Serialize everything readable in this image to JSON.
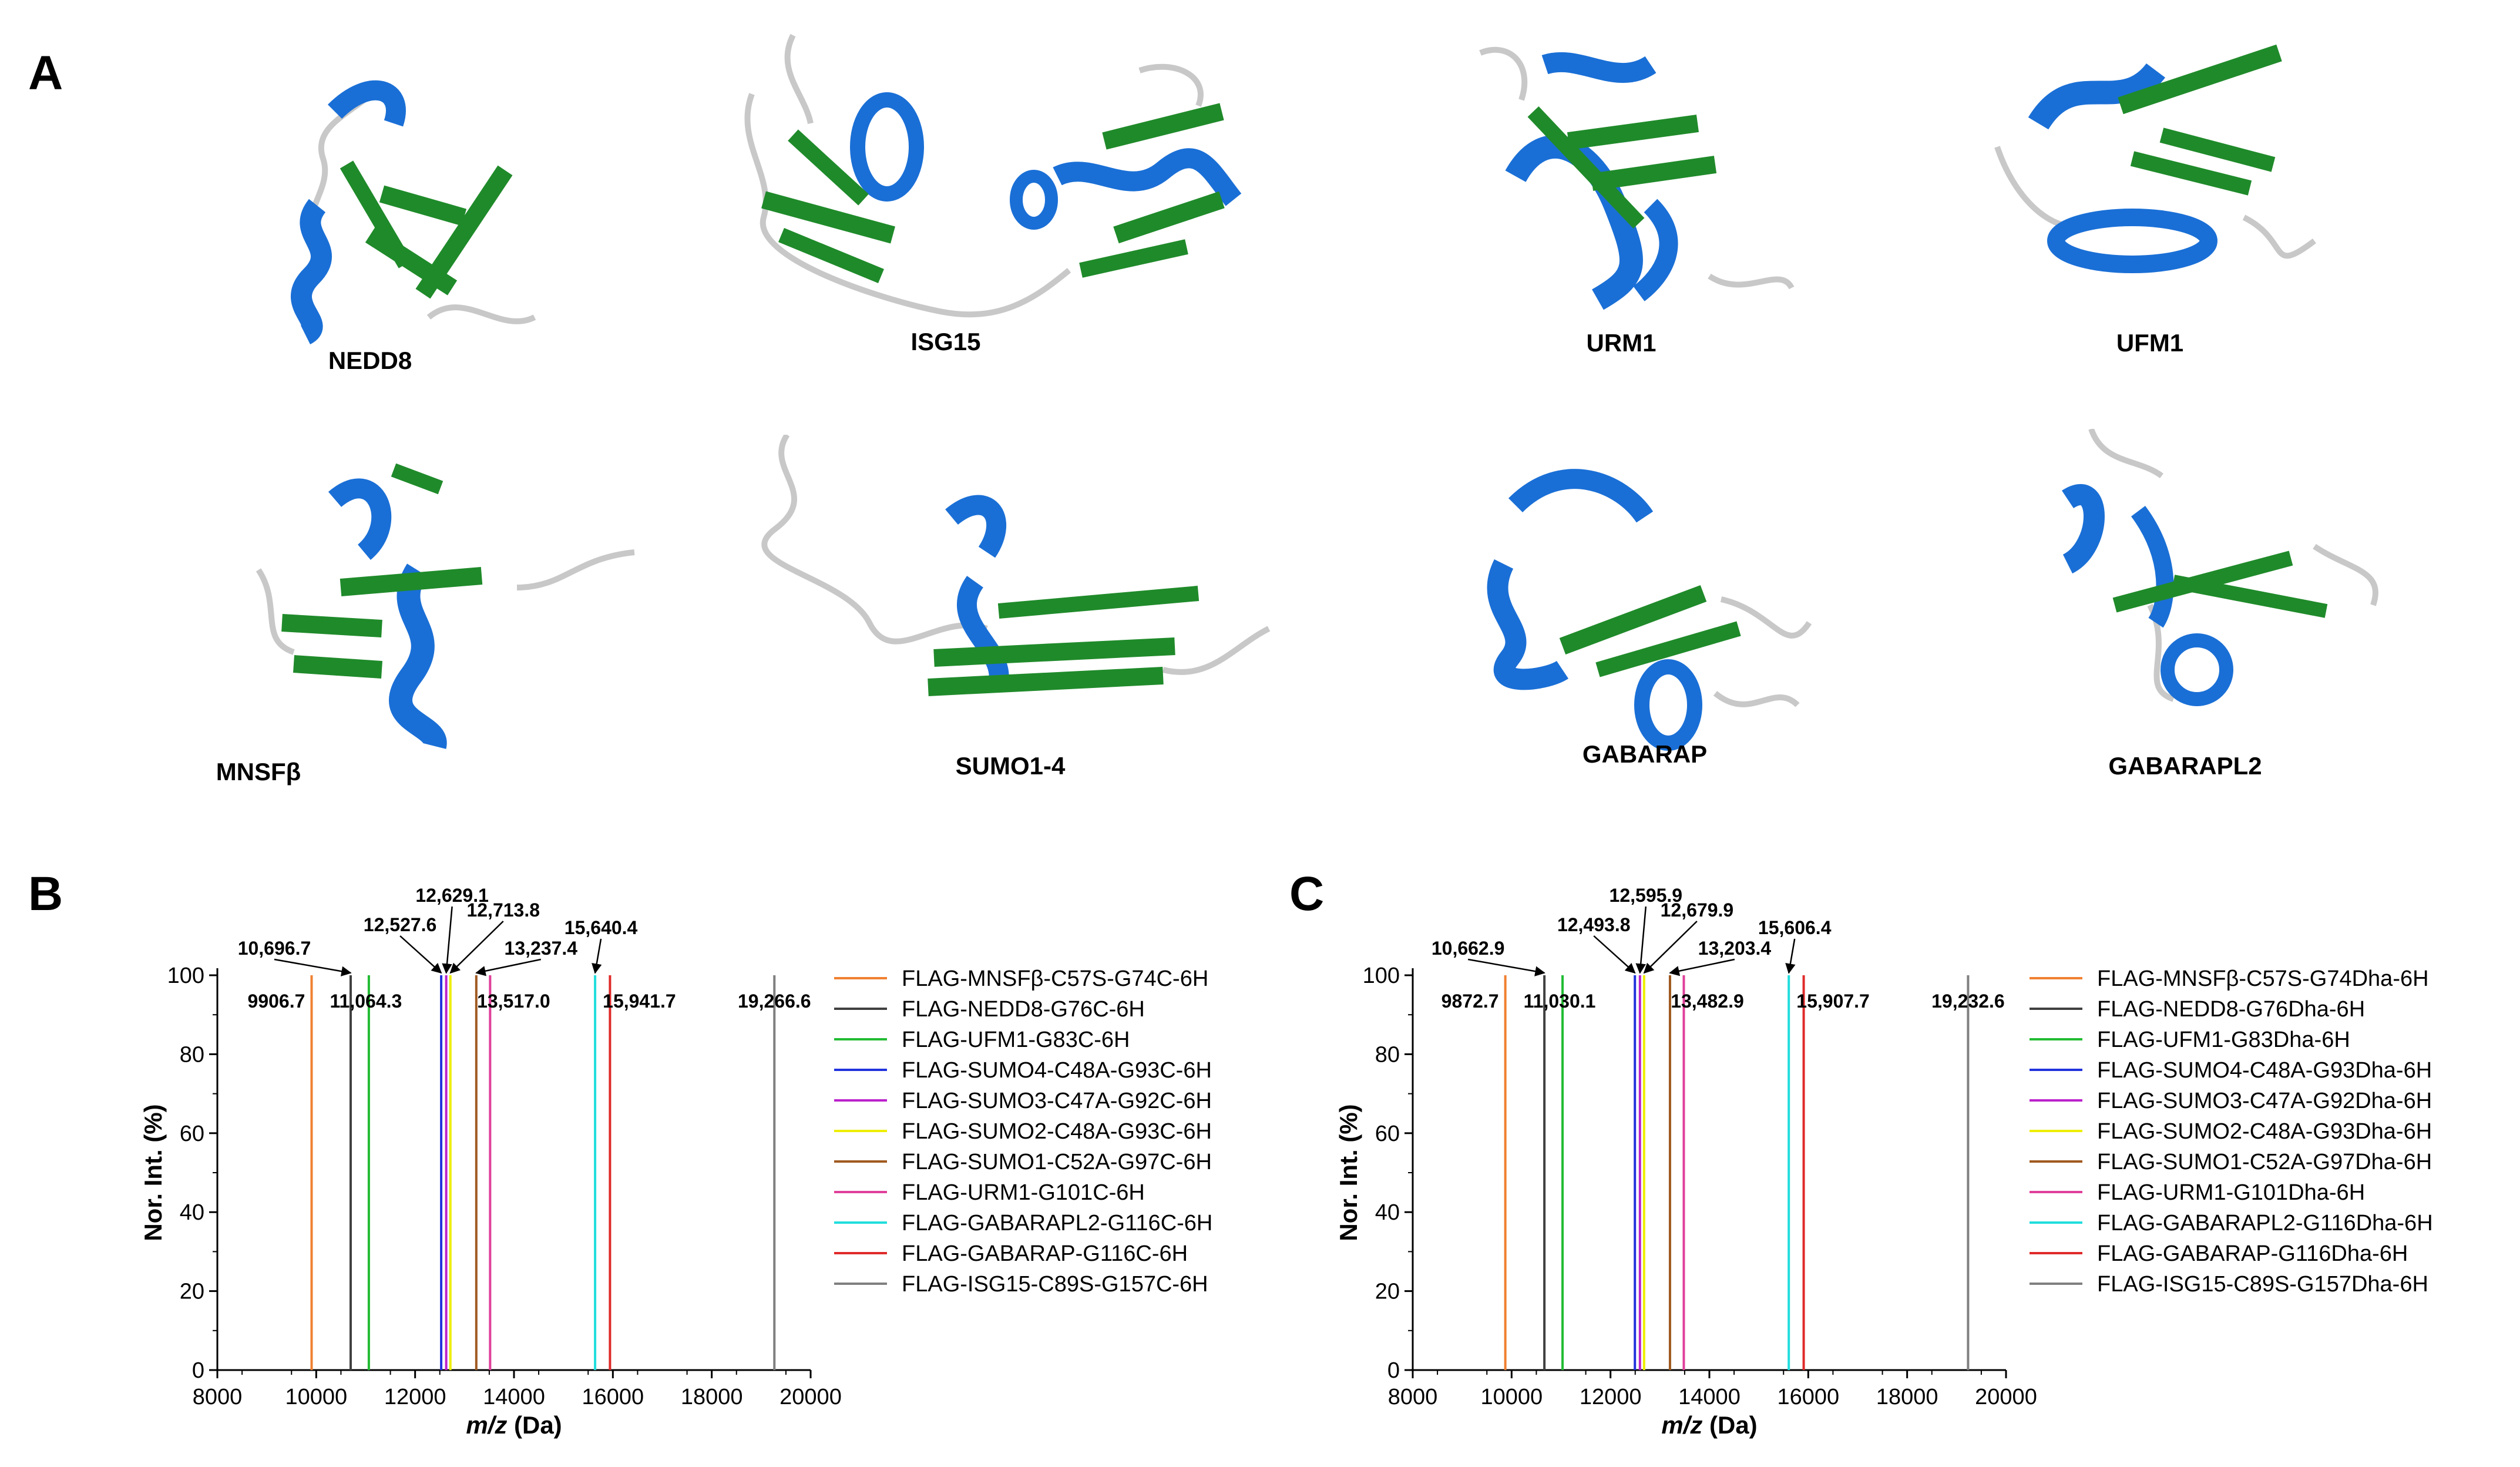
{
  "panels": {
    "a": "A",
    "b": "B",
    "c": "C"
  },
  "proteins": [
    {
      "name": "NEDD8"
    },
    {
      "name": "ISG15"
    },
    {
      "name": "URM1"
    },
    {
      "name": "UFM1"
    },
    {
      "name": "MNSFβ"
    },
    {
      "name": "SUMO1-4"
    },
    {
      "name": "GABARAP"
    },
    {
      "name": "GABARAPL2"
    }
  ],
  "colors": {
    "helix": "#1a6fd6",
    "sheet": "#1f8a2a",
    "loop": "#c8c8c8"
  },
  "chart_data": [
    {
      "type": "bar",
      "panel": "B",
      "xlabel_italic": "m/z",
      "xlabel_rest": " (Da)",
      "ylabel": "Nor. Int. (%)",
      "xlim": [
        8000,
        20000
      ],
      "ylim": [
        0,
        100
      ],
      "xticks": [
        8000,
        10000,
        12000,
        14000,
        16000,
        18000,
        20000
      ],
      "yticks": [
        0,
        20,
        40,
        60,
        80,
        100
      ],
      "series": [
        {
          "name": "FLAG-MNSFβ-C57S-G74C-6H",
          "x": 9906.7,
          "y": 100,
          "color": "#f08030"
        },
        {
          "name": "FLAG-NEDD8-G76C-6H",
          "x": 10696.7,
          "y": 100,
          "color": "#404040"
        },
        {
          "name": "FLAG-UFM1-G83C-6H",
          "x": 11064.3,
          "y": 100,
          "color": "#22bb33"
        },
        {
          "name": "FLAG-SUMO4-C48A-G93C-6H",
          "x": 12527.6,
          "y": 100,
          "color": "#2233dd"
        },
        {
          "name": "FLAG-SUMO3-C47A-G92C-6H",
          "x": 12629.1,
          "y": 100,
          "color": "#bb22cc"
        },
        {
          "name": "FLAG-SUMO2-C48A-G93C-6H",
          "x": 12713.8,
          "y": 100,
          "color": "#eeee00"
        },
        {
          "name": "FLAG-SUMO1-C52A-G97C-6H",
          "x": 13237.4,
          "y": 100,
          "color": "#a05a20"
        },
        {
          "name": "FLAG-URM1-G101C-6H",
          "x": 13517.0,
          "y": 100,
          "color": "#e0409a"
        },
        {
          "name": "FLAG-GABARAPL2-G116C-6H",
          "x": 15640.4,
          "y": 100,
          "color": "#22dddd"
        },
        {
          "name": "FLAG-GABARAP-G116C-6H",
          "x": 15941.7,
          "y": 100,
          "color": "#e02a2a"
        },
        {
          "name": "FLAG-ISG15-C89S-G157C-6H",
          "x": 19266.6,
          "y": 100,
          "color": "#808080"
        }
      ],
      "peak_labels": [
        "9906.7",
        "10,696.7",
        "11,064.3",
        "12,527.6",
        "12,629.1",
        "12,713.8",
        "13,237.4",
        "13,517.0",
        "15,640.4",
        "15,941.7",
        "19,266.6"
      ]
    },
    {
      "type": "bar",
      "panel": "C",
      "xlabel_italic": "m/z",
      "xlabel_rest": " (Da)",
      "ylabel": "Nor. Int. (%)",
      "xlim": [
        8000,
        20000
      ],
      "ylim": [
        0,
        100
      ],
      "xticks": [
        8000,
        10000,
        12000,
        14000,
        16000,
        18000,
        20000
      ],
      "yticks": [
        0,
        20,
        40,
        60,
        80,
        100
      ],
      "series": [
        {
          "name": "FLAG-MNSFβ-C57S-G74Dha-6H",
          "x": 9872.7,
          "y": 100,
          "color": "#f08030"
        },
        {
          "name": "FLAG-NEDD8-G76Dha-6H",
          "x": 10662.9,
          "y": 100,
          "color": "#404040"
        },
        {
          "name": "FLAG-UFM1-G83Dha-6H",
          "x": 11030.1,
          "y": 100,
          "color": "#22bb33"
        },
        {
          "name": "FLAG-SUMO4-C48A-G93Dha-6H",
          "x": 12493.8,
          "y": 100,
          "color": "#2233dd"
        },
        {
          "name": "FLAG-SUMO3-C47A-G92Dha-6H",
          "x": 12595.9,
          "y": 100,
          "color": "#bb22cc"
        },
        {
          "name": "FLAG-SUMO2-C48A-G93Dha-6H",
          "x": 12679.9,
          "y": 100,
          "color": "#eeee00"
        },
        {
          "name": "FLAG-SUMO1-C52A-G97Dha-6H",
          "x": 13203.4,
          "y": 100,
          "color": "#a05a20"
        },
        {
          "name": "FLAG-URM1-G101Dha-6H",
          "x": 13482.9,
          "y": 100,
          "color": "#e0409a"
        },
        {
          "name": "FLAG-GABARAPL2-G116Dha-6H",
          "x": 15606.4,
          "y": 100,
          "color": "#22dddd"
        },
        {
          "name": "FLAG-GABARAP-G116Dha-6H",
          "x": 15907.7,
          "y": 100,
          "color": "#e02a2a"
        },
        {
          "name": "FLAG-ISG15-C89S-G157Dha-6H",
          "x": 19232.6,
          "y": 100,
          "color": "#808080"
        }
      ],
      "peak_labels": [
        "9872.7",
        "10,662.9",
        "11,030.1",
        "12,493.8",
        "12,595.9",
        "12,679.9",
        "13,203.4",
        "13,482.9",
        "15,606.4",
        "15,907.7",
        "19,232.6"
      ]
    }
  ]
}
